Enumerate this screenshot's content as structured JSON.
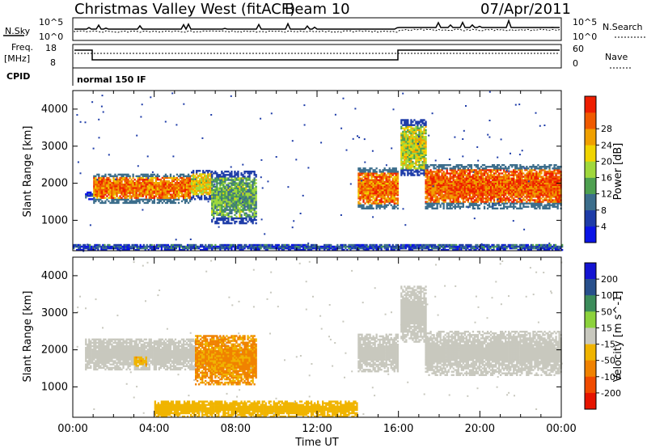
{
  "header": {
    "station": "Christmas Valley West (fitACF)",
    "beam": "Beam 10",
    "date": "07/Apr/2011"
  },
  "top_panels": {
    "nsky_label": "N.Sky",
    "nsearch_label": "N.Search",
    "noise_ticks": [
      "10^5",
      "10^0"
    ],
    "freq_label": "Freq.",
    "freq_unit": "[MHz]",
    "freq_ticks": [
      "18",
      "8"
    ],
    "nave_label": "Nave",
    "nave_ticks": [
      "60",
      "0"
    ],
    "cpid_label": "CPID",
    "cpid_value": "normal 150 IF"
  },
  "colors": {
    "power_scale": [
      "#0a14e6",
      "#1e3ca8",
      "#3c6e8c",
      "#4ea050",
      "#a0d83c",
      "#f0d400",
      "#f0a000",
      "#f05a00",
      "#ee1e00"
    ],
    "velocity_scale": [
      "#1414d2",
      "#28508c",
      "#3c8c5a",
      "#8cd23c",
      "#c8c8be",
      "#f0b400",
      "#f08200",
      "#f04b00",
      "#e61400"
    ]
  },
  "chart_data": [
    {
      "type": "heatmap",
      "name": "power",
      "ylabel": "Slant Range [km]",
      "xlabel": "",
      "xlim": [
        0,
        24
      ],
      "ylim": [
        180,
        4500
      ],
      "yticks": [
        "1000",
        "2000",
        "3000",
        "4000"
      ],
      "colorbar": {
        "label": "Power [dB]",
        "ticks": [
          "4",
          "8",
          "12",
          "16",
          "20",
          "24",
          "28"
        ],
        "range": [
          0,
          30
        ]
      },
      "regions": [
        {
          "t0": 0.6,
          "t1": 1.0,
          "r0": 1550,
          "r1": 1750,
          "v": 6
        },
        {
          "t0": 1.0,
          "t1": 5.8,
          "r0": 1450,
          "r1": 2250,
          "v": 24
        },
        {
          "t0": 5.8,
          "t1": 6.8,
          "r0": 1550,
          "r1": 2350,
          "v": 18
        },
        {
          "t0": 6.8,
          "t1": 9.0,
          "r0": 900,
          "r1": 2300,
          "v": 12
        },
        {
          "t0": 14.0,
          "t1": 16.0,
          "r0": 1300,
          "r1": 2400,
          "v": 24
        },
        {
          "t0": 16.1,
          "t1": 17.3,
          "r0": 2200,
          "r1": 3700,
          "v": 16
        },
        {
          "t0": 17.3,
          "t1": 24.0,
          "r0": 1300,
          "r1": 2500,
          "v": 25
        },
        {
          "t0": 0.0,
          "t1": 24.0,
          "r0": 180,
          "r1": 350,
          "v": 6
        }
      ]
    },
    {
      "type": "heatmap",
      "name": "velocity",
      "ylabel": "Slant Range [km]",
      "xlabel": "Time UT",
      "xlim": [
        0,
        24
      ],
      "ylim": [
        180,
        4500
      ],
      "xticks": [
        "00:00",
        "04:00",
        "08:00",
        "12:00",
        "16:00",
        "20:00",
        "00:00"
      ],
      "yticks": [
        "1000",
        "2000",
        "3000",
        "4000"
      ],
      "colorbar": {
        "label": "Velocity [m s^-1]",
        "ticks": [
          "200",
          "100",
          "50",
          "15",
          "-15",
          "-50",
          "-100",
          "-200"
        ],
        "range": [
          -250,
          250
        ]
      },
      "regions": [
        {
          "t0": 0.6,
          "t1": 6.0,
          "r0": 1450,
          "r1": 2300,
          "v": 0
        },
        {
          "t0": 3.0,
          "t1": 3.6,
          "r0": 1550,
          "r1": 1800,
          "v": -70
        },
        {
          "t0": 6.0,
          "t1": 9.0,
          "r0": 1050,
          "r1": 2400,
          "v": -90
        },
        {
          "t0": 14.0,
          "t1": 16.0,
          "r0": 1400,
          "r1": 2400,
          "v": 0
        },
        {
          "t0": 16.1,
          "t1": 17.3,
          "r0": 2200,
          "r1": 3700,
          "v": 0
        },
        {
          "t0": 17.3,
          "t1": 24.0,
          "r0": 1300,
          "r1": 2500,
          "v": 0
        },
        {
          "t0": 4.0,
          "t1": 14.0,
          "r0": 180,
          "r1": 600,
          "v": -60
        }
      ]
    }
  ]
}
